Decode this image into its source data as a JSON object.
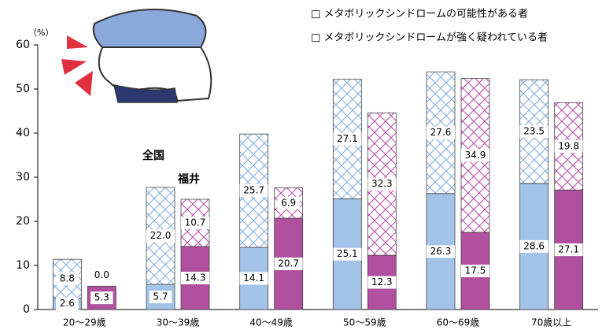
{
  "chart_data": {
    "type": "stacked-grouped-bar",
    "y_unit_label": "（%）",
    "categories": [
      "20～29歳",
      "30～39歳",
      "40～49歳",
      "50～59歳",
      "60～69歳",
      "70歳以上"
    ],
    "ylim": [
      0,
      60
    ],
    "yticks": [
      0,
      10,
      20,
      30,
      40,
      50,
      60
    ],
    "series": [
      {
        "name": "□ メタボリックシンドロームの可能性がある者",
        "pattern": "hatch"
      },
      {
        "name": "□ メタボリックシンドロームが強く疑われている者",
        "pattern": "solid"
      }
    ],
    "groups": [
      {
        "name": "全国",
        "color": "#a3c4e8",
        "hatch_color": "#8fb4e0",
        "strong": [
          2.6,
          5.7,
          14.1,
          25.1,
          26.3,
          28.6
        ],
        "possible": [
          8.8,
          22.0,
          25.7,
          27.1,
          27.6,
          23.5
        ],
        "strong_labels": [
          "2.6",
          "5.7",
          "14.1",
          "25.1",
          "26.3",
          "28.6"
        ],
        "possible_labels": [
          "8.8",
          "22.0",
          "25.7",
          "27.1",
          "27.6",
          "23.5"
        ]
      },
      {
        "name": "福井",
        "color": "#b0509f",
        "hatch_color": "#c060b0",
        "strong": [
          5.3,
          14.3,
          20.7,
          12.3,
          17.5,
          27.1
        ],
        "possible": [
          0.0,
          10.7,
          6.9,
          32.3,
          34.9,
          19.8
        ],
        "strong_labels": [
          "5.3",
          "14.3",
          "20.7",
          "12.3",
          "17.5",
          "27.1"
        ],
        "possible_labels": [
          "0.0",
          "10.7",
          "6.9",
          "32.3",
          "34.9",
          "19.8"
        ]
      }
    ]
  }
}
